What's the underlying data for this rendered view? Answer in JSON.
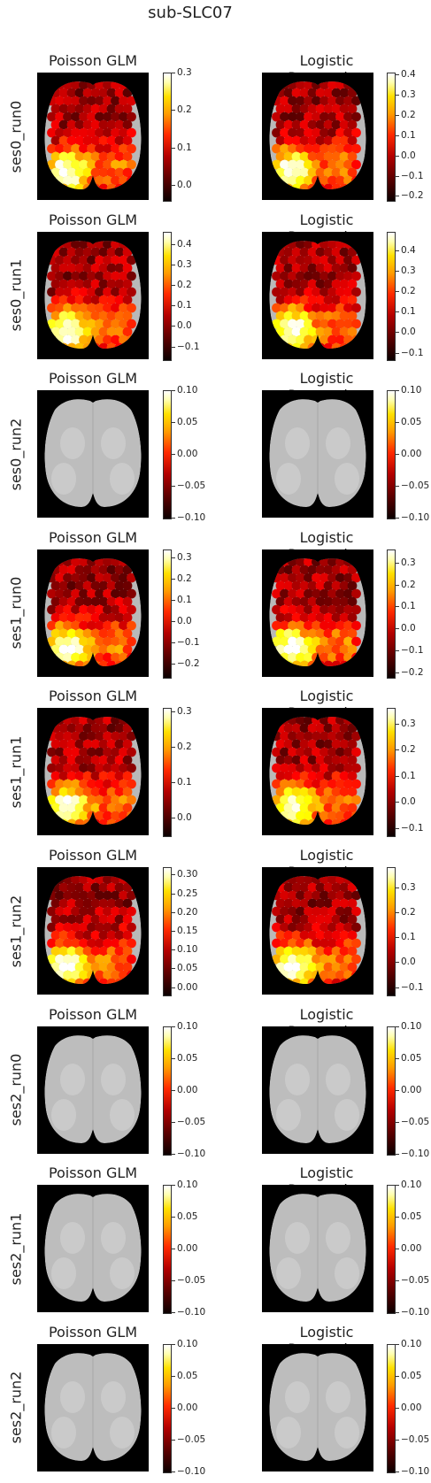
{
  "figure": {
    "suptitle": "sub-SLC07"
  },
  "chart_data": {
    "type": "heatmap",
    "title": "sub-SLC07",
    "columns": [
      "Poisson GLM",
      "Logistic Regression"
    ],
    "colormap": "hot",
    "rows": [
      {
        "label": "ses0_run0",
        "panels": [
          {
            "title": "Poisson GLM",
            "active": true,
            "clim": [
              -0.04,
              0.3
            ],
            "ticks": [
              "0.0",
              "0.1",
              "0.2",
              "0.3"
            ]
          },
          {
            "title": "Logistic Regression",
            "active": true,
            "clim": [
              -0.22,
              0.41
            ],
            "ticks": [
              "−0.2",
              "−0.1",
              "0.0",
              "0.1",
              "0.2",
              "0.3",
              "0.4"
            ]
          }
        ]
      },
      {
        "label": "ses0_run1",
        "panels": [
          {
            "title": "Poisson GLM",
            "active": true,
            "clim": [
              -0.16,
              0.46
            ],
            "ticks": [
              "−0.1",
              "0.0",
              "0.1",
              "0.2",
              "0.3",
              "0.4"
            ]
          },
          {
            "title": "Logistic Regression",
            "active": true,
            "clim": [
              -0.13,
              0.49
            ],
            "ticks": [
              "−0.1",
              "0.0",
              "0.1",
              "0.2",
              "0.3",
              "0.4"
            ]
          }
        ]
      },
      {
        "label": "ses0_run2",
        "panels": [
          {
            "title": "Poisson GLM",
            "active": false,
            "clim": [
              -0.1,
              0.1
            ],
            "ticks": [
              "−0.10",
              "−0.05",
              "0.00",
              "0.05",
              "0.10"
            ]
          },
          {
            "title": "Logistic Regression",
            "active": false,
            "clim": [
              -0.1,
              0.1
            ],
            "ticks": [
              "−0.10",
              "−0.05",
              "0.00",
              "0.05",
              "0.10"
            ]
          }
        ]
      },
      {
        "label": "ses1_run0",
        "panels": [
          {
            "title": "Poisson GLM",
            "active": true,
            "clim": [
              -0.26,
              0.34
            ],
            "ticks": [
              "−0.2",
              "−0.1",
              "0.0",
              "0.1",
              "0.2",
              "0.3"
            ]
          },
          {
            "title": "Logistic Regression",
            "active": true,
            "clim": [
              -0.22,
              0.36
            ],
            "ticks": [
              "−0.2",
              "−0.1",
              "0.0",
              "0.1",
              "0.2",
              "0.3"
            ]
          }
        ]
      },
      {
        "label": "ses1_run1",
        "panels": [
          {
            "title": "Poisson GLM",
            "active": true,
            "clim": [
              -0.05,
              0.31
            ],
            "ticks": [
              "0.0",
              "0.1",
              "0.2",
              "0.3"
            ]
          },
          {
            "title": "Logistic Regression",
            "active": true,
            "clim": [
              -0.13,
              0.36
            ],
            "ticks": [
              "−0.1",
              "0.0",
              "0.1",
              "0.2",
              "0.3"
            ]
          }
        ]
      },
      {
        "label": "ses1_run2",
        "panels": [
          {
            "title": "Poisson GLM",
            "active": true,
            "clim": [
              -0.02,
              0.32
            ],
            "ticks": [
              "0.00",
              "0.05",
              "0.10",
              "0.15",
              "0.20",
              "0.25",
              "0.30"
            ]
          },
          {
            "title": "Logistic Regression",
            "active": true,
            "clim": [
              -0.13,
              0.38
            ],
            "ticks": [
              "−0.1",
              "0.0",
              "0.1",
              "0.2",
              "0.3"
            ]
          }
        ]
      },
      {
        "label": "ses2_run0",
        "panels": [
          {
            "title": "Poisson GLM",
            "active": false,
            "clim": [
              -0.1,
              0.1
            ],
            "ticks": [
              "−0.10",
              "−0.05",
              "0.00",
              "0.05",
              "0.10"
            ]
          },
          {
            "title": "Logistic Regression",
            "active": false,
            "clim": [
              -0.1,
              0.1
            ],
            "ticks": [
              "−0.10",
              "−0.05",
              "0.00",
              "0.05",
              "0.10"
            ]
          }
        ]
      },
      {
        "label": "ses2_run1",
        "panels": [
          {
            "title": "Poisson GLM",
            "active": false,
            "clim": [
              -0.1,
              0.1
            ],
            "ticks": [
              "−0.10",
              "−0.05",
              "0.00",
              "0.05",
              "0.10"
            ]
          },
          {
            "title": "Logistic Regression",
            "active": false,
            "clim": [
              -0.1,
              0.1
            ],
            "ticks": [
              "−0.10",
              "−0.05",
              "0.00",
              "0.05",
              "0.10"
            ]
          }
        ]
      },
      {
        "label": "ses2_run2",
        "panels": [
          {
            "title": "Poisson GLM",
            "active": false,
            "clim": [
              -0.1,
              0.1
            ],
            "ticks": [
              "−0.10",
              "−0.05",
              "0.00",
              "0.05",
              "0.10"
            ]
          },
          {
            "title": "Logistic Regression",
            "active": false,
            "clim": [
              -0.1,
              0.1
            ],
            "ticks": [
              "−0.10",
              "−0.05",
              "0.00",
              "0.05",
              "0.10"
            ]
          }
        ]
      }
    ]
  }
}
